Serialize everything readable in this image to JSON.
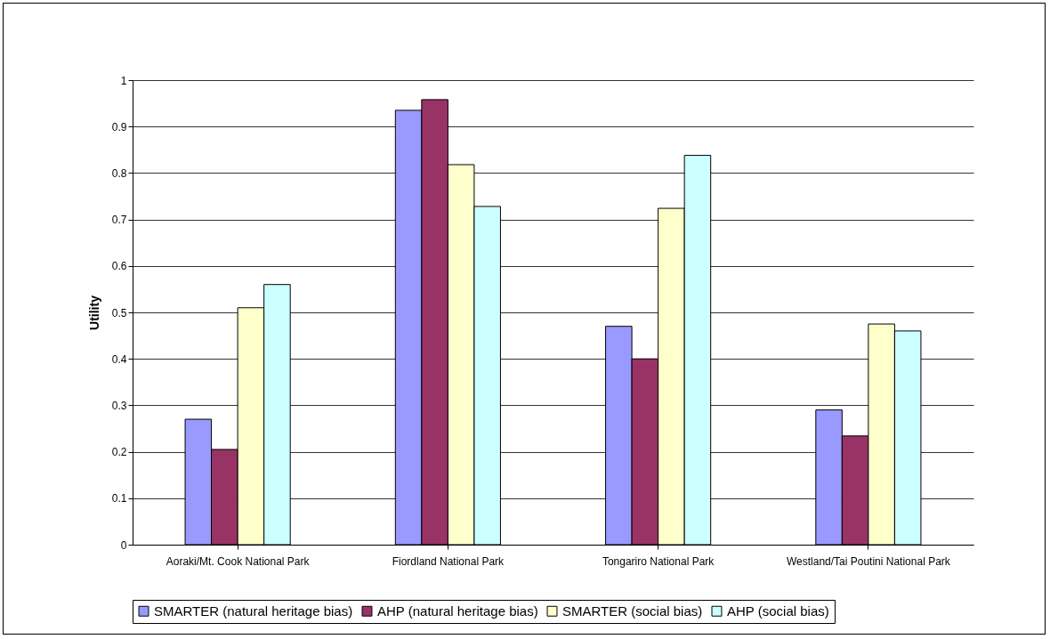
{
  "chart_data": {
    "type": "bar",
    "ylabel": "Utility",
    "categories": [
      "Aoraki/Mt. Cook National Park",
      "Fiordland National Park",
      "Tongariro National Park",
      "Westland/Tai Poutini National Park"
    ],
    "series": [
      {
        "name": "SMARTER (natural heritage bias)",
        "color": "#9999ff",
        "values": [
          0.27,
          0.935,
          0.47,
          0.29
        ]
      },
      {
        "name": "AHP (natural heritage bias)",
        "color": "#993366",
        "values": [
          0.205,
          0.958,
          0.4,
          0.234
        ]
      },
      {
        "name": "SMARTER (social bias)",
        "color": "#ffffcc",
        "values": [
          0.51,
          0.818,
          0.724,
          0.475
        ]
      },
      {
        "name": "AHP (social bias)",
        "color": "#ccffff",
        "values": [
          0.56,
          0.728,
          0.838,
          0.46
        ]
      }
    ],
    "ylim": [
      0,
      1
    ],
    "yticks": [
      0,
      0.1,
      0.2,
      0.3,
      0.4,
      0.5,
      0.6,
      0.7,
      0.8,
      0.9,
      1
    ],
    "grid": "y",
    "legend": "bottom"
  }
}
